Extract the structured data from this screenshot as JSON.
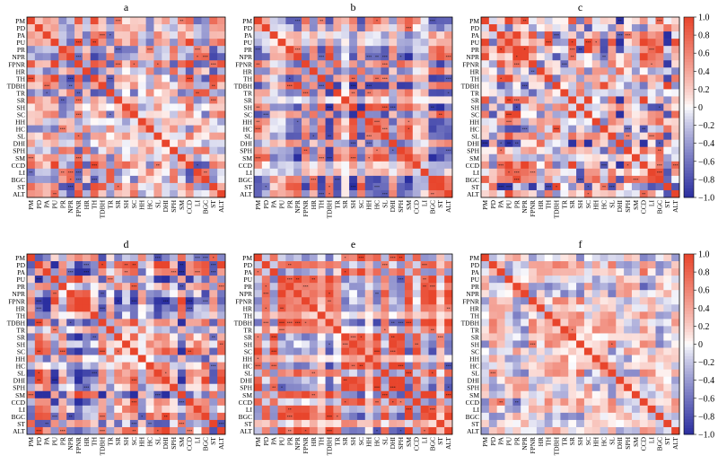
{
  "figure": {
    "panel_labels": [
      "a",
      "b",
      "c",
      "d",
      "e",
      "f"
    ]
  },
  "variables": [
    "PM",
    "PD",
    "PA",
    "PU",
    "PR",
    "NPR",
    "FPNR",
    "HR",
    "TH",
    "TDBH",
    "TR",
    "SR",
    "SH",
    "SC",
    "HH",
    "HC",
    "SL",
    "DHI",
    "SPH",
    "SM",
    "CCD",
    "LI",
    "BGC",
    "ST",
    "ALT"
  ],
  "colorbar": {
    "ticks": [
      "1.0",
      "0.8",
      "0.6",
      "0.4",
      "0.2",
      "0",
      "−0.2",
      "−0.4",
      "−0.6",
      "−0.8",
      "−1.0"
    ],
    "colors": {
      "positive": "#e8452c",
      "neutral": "#ffffff",
      "negative": "#2b2fa0"
    }
  },
  "chart_data": [
    {
      "type": "heatmap",
      "title": "a",
      "x": "variables",
      "y": "variables",
      "zlim": [
        -1,
        1
      ]
    },
    {
      "type": "heatmap",
      "title": "b",
      "x": "variables",
      "y": "variables",
      "zlim": [
        -1,
        1
      ]
    },
    {
      "type": "heatmap",
      "title": "c",
      "x": "variables",
      "y": "variables",
      "zlim": [
        -1,
        1
      ]
    },
    {
      "type": "heatmap",
      "title": "d",
      "x": "variables",
      "y": "variables",
      "zlim": [
        -1,
        1
      ]
    },
    {
      "type": "heatmap",
      "title": "e",
      "x": "variables",
      "y": "variables",
      "zlim": [
        -1,
        1
      ]
    },
    {
      "type": "heatmap",
      "title": "f",
      "x": "variables",
      "y": "variables",
      "zlim": [
        -1,
        1
      ]
    }
  ]
}
